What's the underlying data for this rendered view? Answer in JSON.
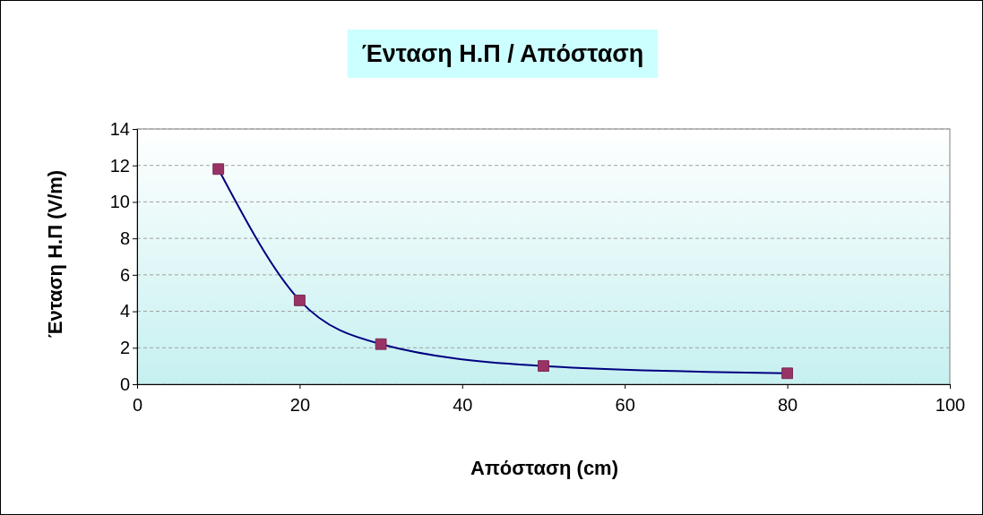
{
  "chart_data": {
    "type": "line",
    "title": "Ένταση Η.Π / Απόσταση",
    "xlabel": "Απόσταση (cm)",
    "ylabel": "Ένταση Η.Π (V/m)",
    "x": [
      10,
      20,
      30,
      50,
      80
    ],
    "series": [
      {
        "color": "#000080",
        "values": [
          11.8,
          4.6,
          2.2,
          1.0,
          0.6
        ]
      }
    ],
    "xlim": [
      0,
      100
    ],
    "xticks": [
      0,
      20,
      40,
      60,
      80,
      100
    ],
    "ylim": [
      0,
      14
    ],
    "yticks": [
      0,
      2,
      4,
      6,
      8,
      10,
      12,
      14
    ],
    "grid": "y",
    "marker": "square"
  }
}
